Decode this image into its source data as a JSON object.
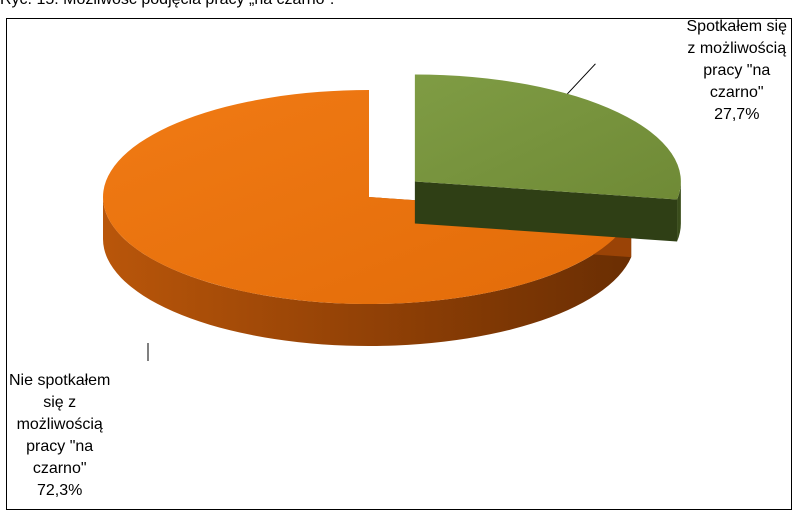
{
  "caption": "Ryc. 15. Możliwość podjęcia pracy „na czarno”.",
  "chart_data": {
    "type": "pie",
    "title": "",
    "slices": [
      {
        "label_lines": [
          "Spotkałem się",
          "z możliwością",
          "pracy \"na",
          "czarno\""
        ],
        "value": 27.7,
        "value_label": "27,7%",
        "color": "#76923c",
        "side_color": "#2f3f15",
        "exploded": true
      },
      {
        "label_lines": [
          "Nie spotkałem",
          "się z",
          "możliwością",
          "pracy \"na",
          "czarno\""
        ],
        "value": 72.3,
        "value_label": "72,3%",
        "color": "#e36c09",
        "side_color": "#8a3d05",
        "exploded": false
      }
    ],
    "legend": "none",
    "style": "3d-exploded"
  }
}
